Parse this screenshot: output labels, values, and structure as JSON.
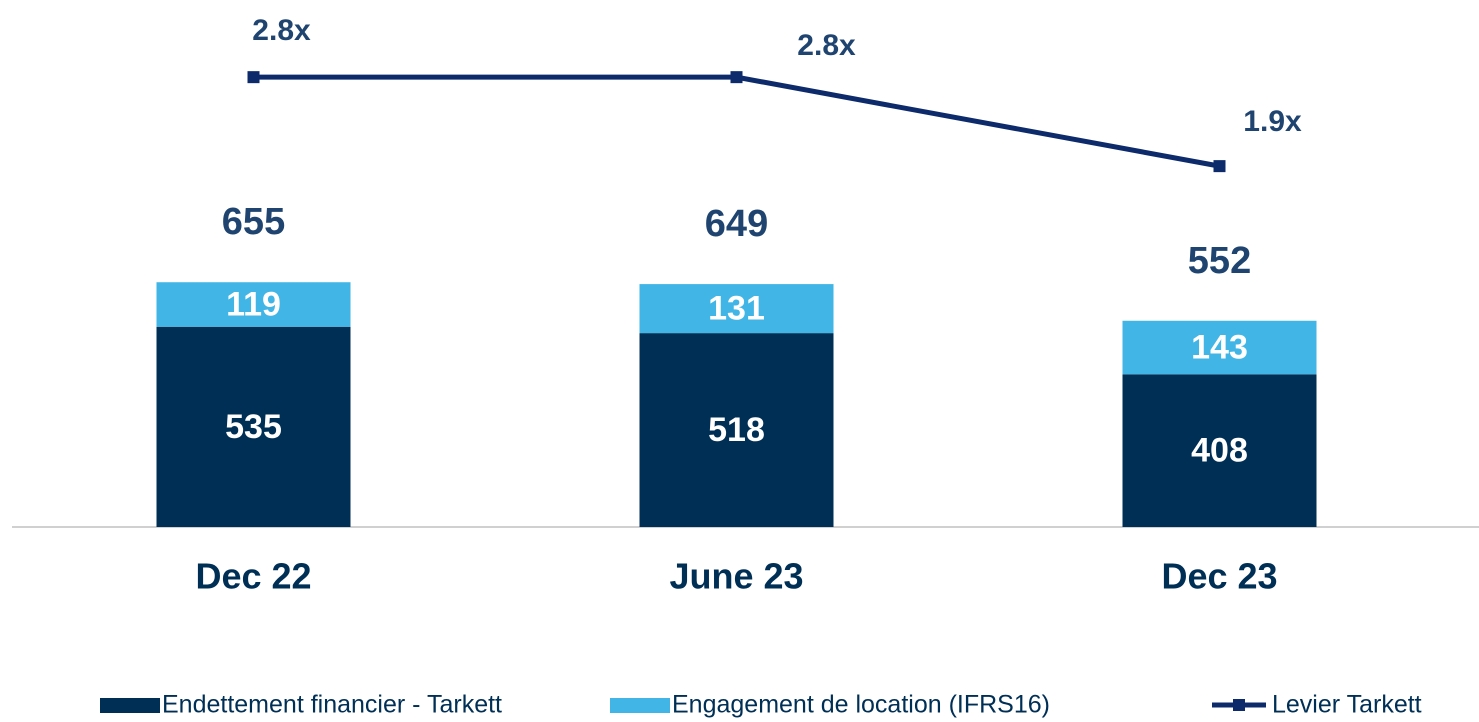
{
  "chart_data": {
    "type": "bar",
    "stacked": true,
    "categories": [
      "Dec 22",
      "June 23",
      "Dec 23"
    ],
    "series": [
      {
        "name": "Endettement financier - Tarkett",
        "color": "#002f56",
        "values": [
          535,
          518,
          408
        ]
      },
      {
        "name": "Engagement de location (IFRS16)",
        "color": "#41b6e6",
        "values": [
          119,
          131,
          143
        ]
      },
      {
        "name": "Levier Tarkett",
        "color": "#0d2a6b",
        "type": "line",
        "axis": "y2",
        "values": [
          2.8,
          2.8,
          1.9
        ],
        "value_labels": [
          "2.8x",
          "2.8x",
          "1.9x"
        ]
      }
    ],
    "totals": [
      655,
      649,
      552
    ],
    "ylim": [
      0,
      1400
    ],
    "y2lim": [
      -1.75,
      3.55
    ],
    "legend": "bottom"
  }
}
